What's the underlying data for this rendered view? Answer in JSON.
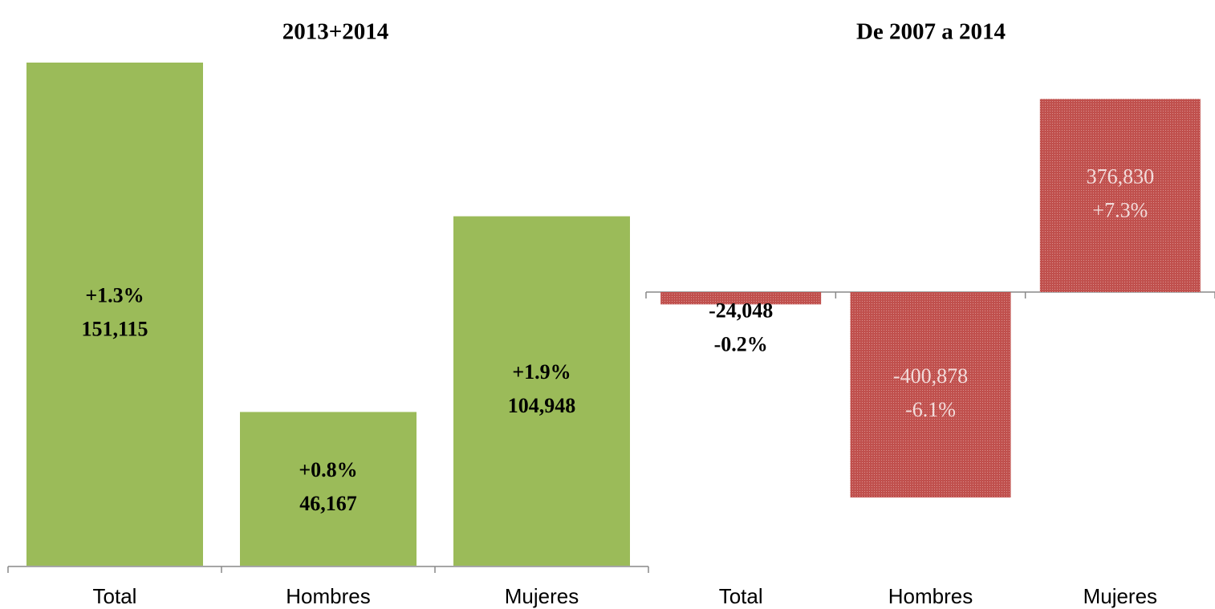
{
  "chart_data": [
    {
      "type": "bar",
      "title": "2013+2014",
      "categories": [
        "Total",
        "Hombres",
        "Mujeres"
      ],
      "values": [
        151115,
        46167,
        104948
      ],
      "value_labels": [
        "151,115",
        "46,167",
        "104,948"
      ],
      "change_labels": [
        "+1.3%",
        "+0.8%",
        "+1.9%"
      ],
      "color": "#9bbb59"
    },
    {
      "type": "bar",
      "title": "De 2007 a 2014",
      "categories": [
        "Total",
        "Hombres",
        "Mujeres"
      ],
      "values": [
        -24048,
        -400878,
        376830
      ],
      "value_labels": [
        "-24,048",
        "-400,878",
        "376,830"
      ],
      "change_labels": [
        "-0.2%",
        "-6.1%",
        "+7.3%"
      ],
      "color": "#c0504d"
    }
  ]
}
